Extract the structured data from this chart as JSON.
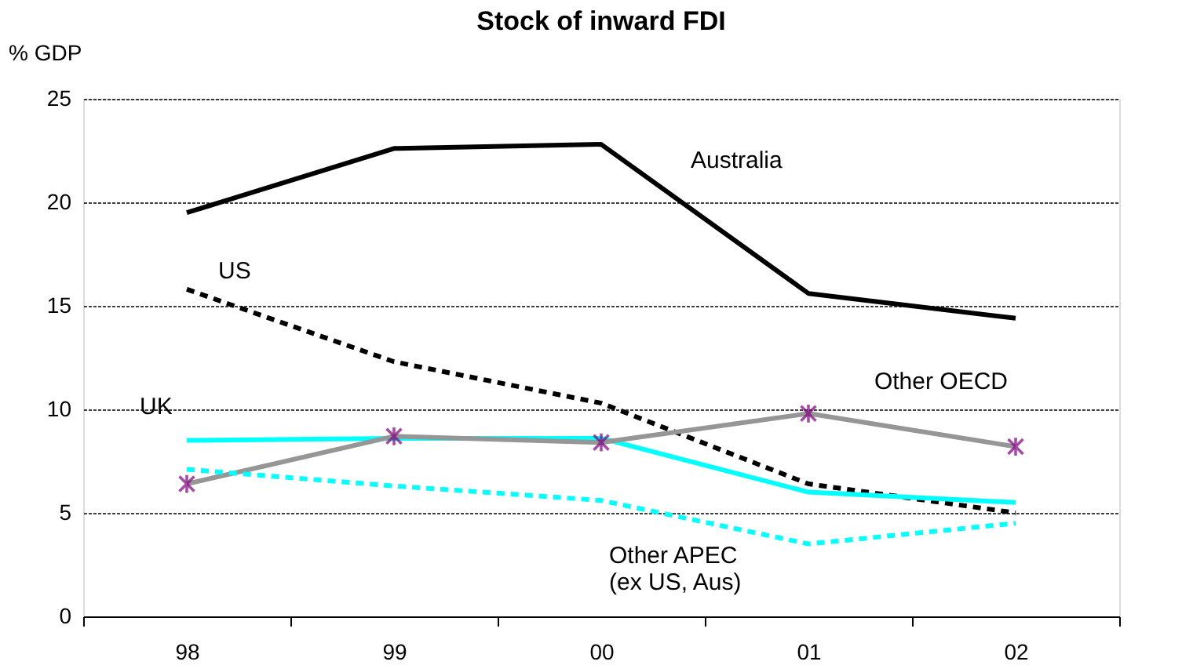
{
  "chart_data": {
    "type": "line",
    "title": "Stock of inward FDI",
    "ylabel": "% GDP",
    "categories": [
      "98",
      "99",
      "00",
      "01",
      "02"
    ],
    "series": [
      {
        "name": "Australia",
        "color": "#000000",
        "line_style": "solid",
        "values": [
          19.5,
          22.6,
          22.8,
          15.6,
          14.4
        ]
      },
      {
        "name": "US",
        "color": "#000000",
        "line_style": "dashed",
        "values": [
          15.8,
          12.3,
          10.3,
          6.4,
          5.0
        ]
      },
      {
        "name": "UK",
        "color": "#00ffff",
        "line_style": "solid",
        "values": [
          8.5,
          8.6,
          8.6,
          6.0,
          5.5
        ]
      },
      {
        "name": "Other OECD",
        "color": "#969696",
        "line_style": "solid",
        "values": [
          6.4,
          8.7,
          8.4,
          9.8,
          8.2
        ]
      },
      {
        "type": "scatter",
        "color": "#800080",
        "marker": "cross",
        "values": [
          6.4,
          8.7,
          8.4,
          9.8,
          8.2
        ]
      },
      {
        "name": "Other APEC\n(ex US, Aus)",
        "color": "#00ffff",
        "line_style": "dashed",
        "values": [
          7.1,
          6.3,
          5.6,
          3.5,
          4.5
        ]
      }
    ],
    "ylim": [
      0,
      25
    ],
    "yticks": [
      0,
      5,
      10,
      15,
      20,
      25
    ],
    "grid": "y"
  }
}
